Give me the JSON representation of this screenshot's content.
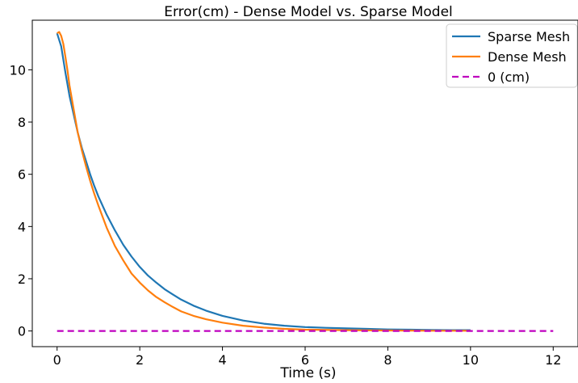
{
  "chart_data": {
    "type": "line",
    "title": "Error(cm) - Dense Model vs. Sparse Model",
    "xlabel": "Time (s)",
    "ylabel": "",
    "xlim": [
      -0.6,
      12.6
    ],
    "ylim": [
      -0.6,
      11.9
    ],
    "xticks": [
      0,
      2,
      4,
      6,
      8,
      10,
      12
    ],
    "yticks": [
      0,
      2,
      4,
      6,
      8,
      10
    ],
    "grid": false,
    "legend_position": "top-right",
    "series": [
      {
        "name": "Sparse Mesh",
        "color": "#1f77b4",
        "style": "solid",
        "x": [
          0,
          0.1,
          0.2,
          0.3,
          0.4,
          0.5,
          0.6,
          0.7,
          0.8,
          0.9,
          1.0,
          1.2,
          1.4,
          1.6,
          1.8,
          2.0,
          2.2,
          2.4,
          2.6,
          2.8,
          3.0,
          3.3,
          3.6,
          4.0,
          4.5,
          5.0,
          5.5,
          6.0,
          6.5,
          7.0,
          7.5,
          8.0,
          8.5,
          9.0,
          9.5,
          10.0
        ],
        "y": [
          11.4,
          10.9,
          9.9,
          9.0,
          8.3,
          7.6,
          7.0,
          6.5,
          6.0,
          5.55,
          5.15,
          4.45,
          3.85,
          3.3,
          2.85,
          2.45,
          2.12,
          1.85,
          1.6,
          1.4,
          1.2,
          0.97,
          0.78,
          0.58,
          0.4,
          0.28,
          0.2,
          0.15,
          0.12,
          0.1,
          0.08,
          0.06,
          0.05,
          0.04,
          0.03,
          0.03
        ]
      },
      {
        "name": "Dense Mesh",
        "color": "#ff7f0e",
        "style": "solid",
        "x": [
          0,
          0.05,
          0.1,
          0.15,
          0.2,
          0.25,
          0.3,
          0.4,
          0.5,
          0.6,
          0.7,
          0.8,
          0.9,
          1.0,
          1.2,
          1.4,
          1.6,
          1.8,
          2.0,
          2.2,
          2.4,
          2.6,
          2.8,
          3.0,
          3.3,
          3.6,
          4.0,
          4.5,
          5.0,
          5.5,
          6.0,
          7.0,
          8.0,
          9.0,
          10.0
        ],
        "y": [
          11.4,
          11.45,
          11.3,
          11.0,
          10.5,
          10.0,
          9.4,
          8.5,
          7.6,
          6.9,
          6.3,
          5.75,
          5.25,
          4.8,
          3.95,
          3.25,
          2.7,
          2.2,
          1.85,
          1.55,
          1.3,
          1.1,
          0.92,
          0.75,
          0.58,
          0.45,
          0.32,
          0.2,
          0.13,
          0.08,
          0.05,
          0.03,
          0.02,
          0.01,
          0.01
        ]
      },
      {
        "name": "0 (cm)",
        "color": "#bf00bf",
        "style": "dashed",
        "x": [
          0,
          12
        ],
        "y": [
          0,
          0
        ]
      }
    ]
  }
}
